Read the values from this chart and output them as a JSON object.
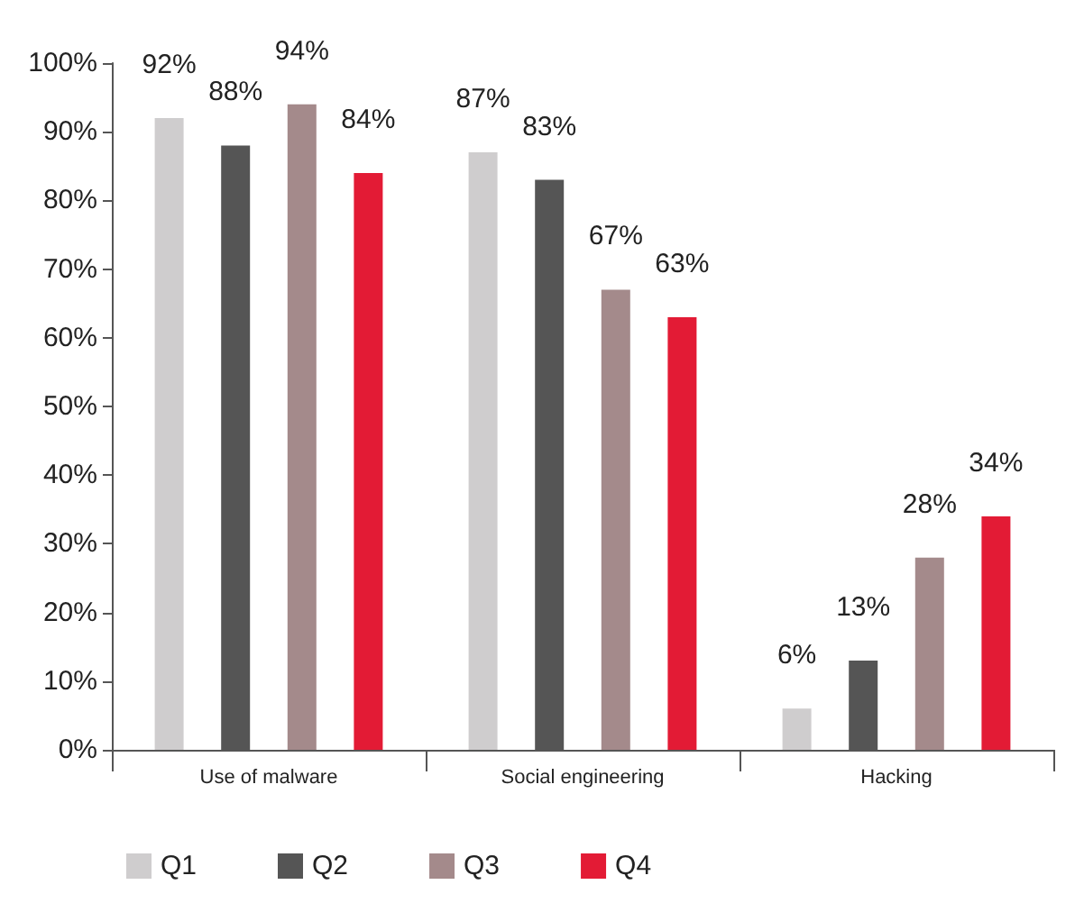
{
  "chart_data": {
    "type": "bar",
    "categories": [
      "Use of malware",
      "Social engineering",
      "Hacking"
    ],
    "series": [
      {
        "name": "Q1",
        "color": "#cfcdce",
        "values": [
          92,
          87,
          6
        ],
        "value_labels": [
          "92%",
          "87%",
          "6%"
        ]
      },
      {
        "name": "Q2",
        "color": "#555555",
        "values": [
          88,
          83,
          13
        ],
        "value_labels": [
          "88%",
          "83%",
          "13%"
        ]
      },
      {
        "name": "Q3",
        "color": "#a48a8b",
        "values": [
          94,
          67,
          28
        ],
        "value_labels": [
          "94%",
          "67%",
          "28%"
        ]
      },
      {
        "name": "Q4",
        "color": "#e31b35",
        "values": [
          84,
          63,
          34
        ],
        "value_labels": [
          "84%",
          "63%",
          "34%"
        ]
      }
    ],
    "ylim": [
      0,
      100
    ],
    "yticks": [
      {
        "value": 0,
        "label": "0%"
      },
      {
        "value": 10,
        "label": "10%"
      },
      {
        "value": 20,
        "label": "20%"
      },
      {
        "value": 30,
        "label": "30%"
      },
      {
        "value": 40,
        "label": "40%"
      },
      {
        "value": 50,
        "label": "50%"
      },
      {
        "value": 60,
        "label": "60%"
      },
      {
        "value": 70,
        "label": "70%"
      },
      {
        "value": 80,
        "label": "80%"
      },
      {
        "value": 90,
        "label": "90%"
      },
      {
        "value": 100,
        "label": "100%"
      }
    ],
    "grid": false,
    "legend": "bottom left"
  }
}
